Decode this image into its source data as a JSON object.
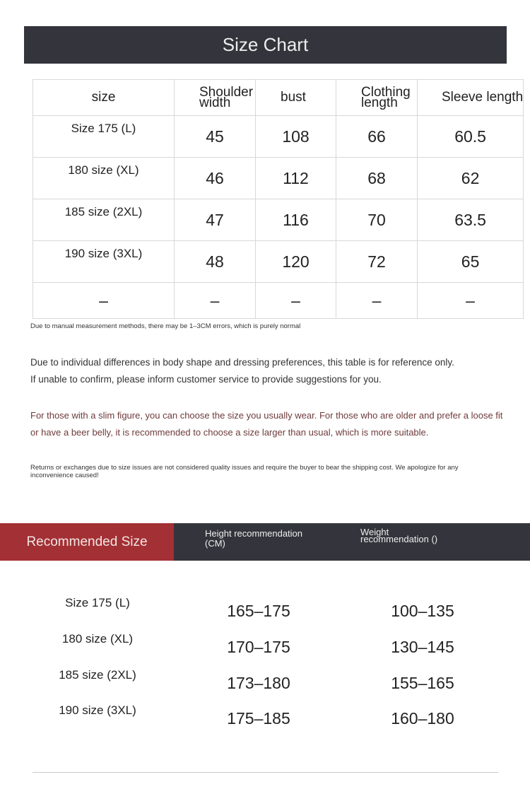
{
  "title": "Size Chart",
  "table": {
    "headers": [
      "size",
      "Shoulder width",
      "bust",
      "Clothing length",
      "Sleeve length"
    ],
    "rows": [
      [
        "Size 175 (L)",
        "45",
        "108",
        "66",
        "60.5"
      ],
      [
        "180 size (XL)",
        "46",
        "112",
        "68",
        "62"
      ],
      [
        "185 size (2XL)",
        "47",
        "116",
        "70",
        "63.5"
      ],
      [
        "190 size (3XL)",
        "48",
        "120",
        "72",
        "65"
      ],
      [
        "–",
        "–",
        "–",
        "–",
        "–"
      ]
    ]
  },
  "notes": {
    "measurement": "Due to manual measurement methods, there may be 1–3CM errors, which is purely normal",
    "reference_line1": "Due to individual differences in body shape and dressing preferences, this table is for reference only.",
    "reference_line2": "If unable to confirm, please inform customer service to provide suggestions for you.",
    "fit_line1": "For those with a slim figure, you can choose the size you usually wear. For those who are older and prefer a loose fit",
    "fit_line2": "or have a beer belly, it is recommended to choose a size larger than usual, which is more suitable.",
    "returns": "Returns or exchanges due to size issues are not considered quality issues and require the buyer to bear the shipping cost. We apologize for any inconvenience caused!"
  },
  "recommended": {
    "title": "Recommended Size",
    "height_header": "Height recommendation (CM)",
    "weight_header": "Weight recommendation ()",
    "rows": [
      {
        "size": "Size 175 (L)",
        "height": "165–175",
        "weight": "100–135"
      },
      {
        "size": "180 size (XL)",
        "height": "170–175",
        "weight": "130–145"
      },
      {
        "size": "185 size (2XL)",
        "height": "173–180",
        "weight": "155–165"
      },
      {
        "size": "190 size (3XL)",
        "height": "175–185",
        "weight": "160–180"
      }
    ]
  },
  "colors": {
    "banner": "#34343c",
    "accent_red": "#a33034",
    "note_brown": "#6e3a3a"
  }
}
